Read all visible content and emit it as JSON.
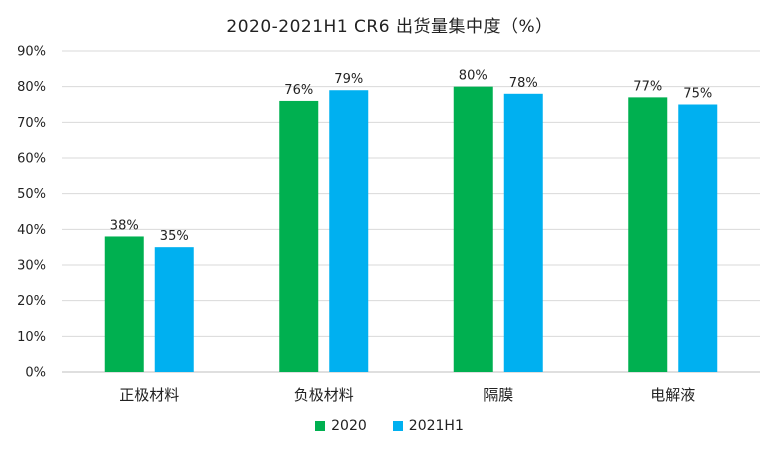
{
  "chart_data": {
    "type": "bar",
    "title": "2020-2021H1 CR6 出货量集中度（%）",
    "xlabel": "",
    "ylabel": "",
    "categories": [
      "正极材料",
      "负极材料",
      "隔膜",
      "电解液"
    ],
    "series": [
      {
        "name": "2020",
        "color": "#00b050",
        "values": [
          38,
          76,
          80,
          77
        ],
        "labels": [
          "38%",
          "76%",
          "80%",
          "77%"
        ]
      },
      {
        "name": "2021H1",
        "color": "#00b0f0",
        "values": [
          35,
          79,
          78,
          75
        ],
        "labels": [
          "35%",
          "79%",
          "78%",
          "75%"
        ]
      }
    ],
    "ylim": [
      0,
      90
    ],
    "yticks": [
      0,
      10,
      20,
      30,
      40,
      50,
      60,
      70,
      80,
      90
    ],
    "ytick_labels": [
      "0%",
      "10%",
      "20%",
      "30%",
      "40%",
      "50%",
      "60%",
      "70%",
      "80%",
      "90%"
    ],
    "grid": true,
    "legend_position": "bottom"
  }
}
